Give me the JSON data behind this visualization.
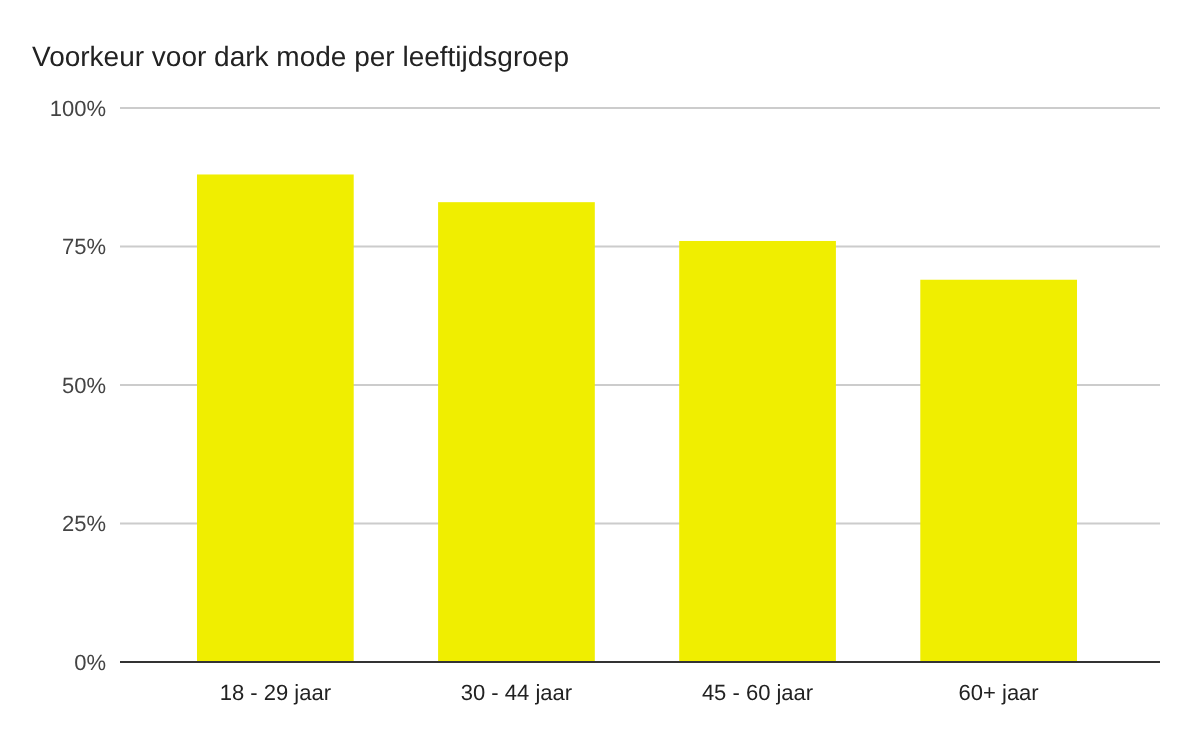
{
  "chart_data": {
    "type": "bar",
    "title": "Voorkeur voor dark mode per leeftijdsgroep",
    "categories": [
      "18 - 29 jaar",
      "30 - 44 jaar",
      "45 - 60 jaar",
      "60+ jaar"
    ],
    "values": [
      88,
      83,
      76,
      69
    ],
    "color": "#f0ee00",
    "ylim": [
      0,
      100
    ],
    "yticks": [
      {
        "value": 0,
        "label": "0%"
      },
      {
        "value": 25,
        "label": "25%"
      },
      {
        "value": 50,
        "label": "50%"
      },
      {
        "value": 75,
        "label": "75%"
      },
      {
        "value": 100,
        "label": "100%"
      }
    ],
    "grid": "y"
  }
}
